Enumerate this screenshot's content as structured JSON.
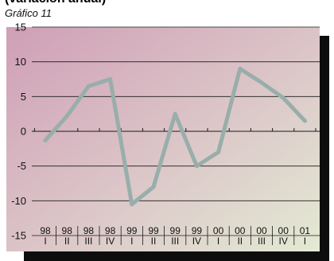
{
  "header": {
    "title_fragment": "(variación anual)"
  },
  "figure_label": "Gráfico 11",
  "colors": {
    "plot_gradient_start": "#cf9fb6",
    "plot_gradient_mid": "#dbc3c7",
    "plot_gradient_end": "#e3ead4",
    "line": "#98aeaa",
    "shadow": "#0d0d0d",
    "gridline": "#1a1a1a"
  },
  "chart_data": {
    "type": "line",
    "title": "",
    "xlabel": "",
    "ylabel": "",
    "ylim": [
      -15,
      15
    ],
    "yticks": [
      -15,
      -10,
      -5,
      0,
      5,
      10,
      15
    ],
    "grid": true,
    "legend": "none",
    "categories": [
      {
        "year": "98",
        "quarter": "I"
      },
      {
        "year": "98",
        "quarter": "II"
      },
      {
        "year": "98",
        "quarter": "III"
      },
      {
        "year": "98",
        "quarter": "IV"
      },
      {
        "year": "99",
        "quarter": "I"
      },
      {
        "year": "99",
        "quarter": "II"
      },
      {
        "year": "99",
        "quarter": "III"
      },
      {
        "year": "99",
        "quarter": "IV"
      },
      {
        "year": "00",
        "quarter": "I"
      },
      {
        "year": "00",
        "quarter": "II"
      },
      {
        "year": "00",
        "quarter": "III"
      },
      {
        "year": "00",
        "quarter": "IV"
      },
      {
        "year": "01",
        "quarter": "I"
      }
    ],
    "series": [
      {
        "values": [
          -1.3,
          2.2,
          6.5,
          7.5,
          -10.5,
          -8.0,
          2.5,
          -5.0,
          -3.0,
          9.0,
          7.0,
          4.8,
          1.5
        ]
      }
    ]
  }
}
